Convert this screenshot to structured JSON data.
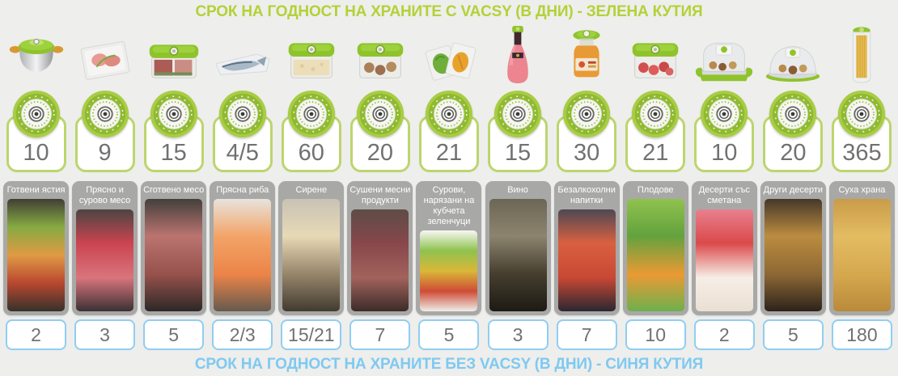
{
  "header": {
    "title": "СРОК НА ГОДНОСТ НА ХРАНИТЕ С VACSY (В ДНИ) - ЗЕЛЕНА КУТИЯ"
  },
  "footer": {
    "title": "СРОК НА ГОДНОСТ НА ХРАНИТЕ БЕЗ VACSY (В ДНИ) - СИНЯ КУТИЯ"
  },
  "colors": {
    "background": "#eeeeec",
    "green_title": "#b3d138",
    "blue_title": "#7fc9f1",
    "green_box_border": "#bcd56e",
    "blue_box_border": "#8fcef2",
    "label_background": "#a8a8a6",
    "number_text": "#717171",
    "vacsy_green": "#8fc32c"
  },
  "chart_data": {
    "type": "table",
    "title": "Срок на годност на храните с/без Vacsy (в дни)",
    "categories": [
      "Готвени ястия",
      "Прясно и сурово месо",
      "Сготвено месо",
      "Прясна риба",
      "Сирене",
      "Сушени месни продукти",
      "Сурови, нарязани на кубчета зеленчуци",
      "Вино",
      "Безалкохолни напитки",
      "Плодове",
      "Десерти със сметана",
      "Други десерти",
      "Суха храна"
    ],
    "series": [
      {
        "name": "С Vacsy (зелена кутия)",
        "values": [
          "10",
          "9",
          "15",
          "4/5",
          "60",
          "20",
          "21",
          "15",
          "30",
          "21",
          "10",
          "20",
          "365"
        ]
      },
      {
        "name": "Без Vacsy (синя кутия)",
        "values": [
          "2",
          "3",
          "5",
          "2/3",
          "15/21",
          "7",
          "5",
          "3",
          "7",
          "10",
          "2",
          "5",
          "180"
        ]
      }
    ]
  },
  "columns": [
    {
      "product": "vacsy-pot",
      "days_with": "10",
      "label": "Готвени ястия",
      "photo": "cooked-dishes",
      "photo_colors": [
        "#413f35",
        "#86ab42",
        "#e09a44",
        "#b8472f",
        "#35322a"
      ],
      "days_without": "2"
    },
    {
      "product": "vacuum-bag-raw-meat",
      "days_with": "9",
      "label": "Прясно и сурово месо",
      "photo": "raw-meat",
      "photo_colors": [
        "#4c4542",
        "#cb4450",
        "#d9747c",
        "#3a3134"
      ],
      "days_without": "3"
    },
    {
      "product": "container-cooked-meat",
      "days_with": "15",
      "label": "Сготвено месо",
      "photo": "cooked-meat",
      "photo_colors": [
        "#43403c",
        "#bb7470",
        "#97524c",
        "#2c2826"
      ],
      "days_without": "5"
    },
    {
      "product": "vacuum-bag-fish",
      "days_with": "4/5",
      "label": "Прясна риба",
      "photo": "fresh-fish",
      "photo_colors": [
        "#e7e3dc",
        "#f3a468",
        "#ec8448",
        "#665a4e"
      ],
      "days_without": "2/3"
    },
    {
      "product": "container-cheese",
      "days_with": "60",
      "label": "Сирене",
      "photo": "cheese",
      "photo_colors": [
        "#c9c3b5",
        "#e7d9b6",
        "#96856a",
        "#423b30"
      ],
      "days_without": "15/21"
    },
    {
      "product": "container-dried-meats",
      "days_with": "20",
      "label": "Сушени месни продукти",
      "photo": "dried-meat-products",
      "photo_colors": [
        "#5e4c46",
        "#87474b",
        "#a2625c",
        "#3b2c29"
      ],
      "days_without": "7"
    },
    {
      "product": "vacuum-bags-vegetables",
      "days_with": "21",
      "label": "Сурови, нарязани на кубчета зеленчуци",
      "photo": "diced-vegetables",
      "photo_colors": [
        "#f7f7f4",
        "#8fc24e",
        "#d9b838",
        "#cf4c36",
        "#eeeeea"
      ],
      "days_without": "5"
    },
    {
      "product": "wine-bottle-stopper",
      "days_with": "15",
      "label": "Вино",
      "photo": "wine",
      "photo_colors": [
        "#6c6655",
        "#8c846e",
        "#453e2e",
        "#1d1a14"
      ],
      "days_without": "3"
    },
    {
      "product": "juice-bottle-stopper",
      "days_with": "30",
      "label": "Безалкохолни напитки",
      "photo": "soft-drinks",
      "photo_colors": [
        "#4e4854",
        "#d96040",
        "#c84834",
        "#2b2731"
      ],
      "days_without": "7"
    },
    {
      "product": "container-fruits",
      "days_with": "21",
      "label": "Плодове",
      "photo": "fruits",
      "photo_colors": [
        "#90c24e",
        "#63a23e",
        "#ea9a34",
        "#6db04d"
      ],
      "days_without": "10"
    },
    {
      "product": "square-dome-desserts",
      "days_with": "10",
      "label": "Десерти със сметана",
      "photo": "cream-desserts",
      "photo_colors": [
        "#e8808e",
        "#da4a4a",
        "#f6eee6",
        "#eadfd3"
      ],
      "days_without": "2"
    },
    {
      "product": "round-dome-desserts",
      "days_with": "20",
      "label": "Други десерти",
      "photo": "other-desserts",
      "photo_colors": [
        "#463829",
        "#bb8c40",
        "#8d6834",
        "#2d231b"
      ],
      "days_without": "5"
    },
    {
      "product": "spaghetti-cylinder",
      "days_with": "365",
      "label": "Суха храна",
      "photo": "dry-food",
      "photo_colors": [
        "#c99c49",
        "#e3bc62",
        "#d6a84e",
        "#b98a3a"
      ],
      "days_without": "180"
    }
  ]
}
